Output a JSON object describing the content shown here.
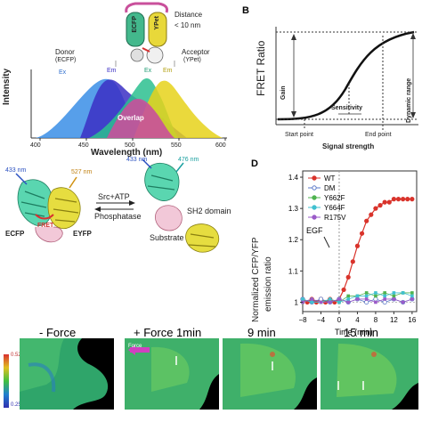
{
  "panelA": {
    "distance_label": "Distance",
    "distance_value": "< 10 nm",
    "ecfp_label": "ECFP",
    "ypet_label": "YPet",
    "donor_label": "Donor",
    "donor_sub": "(ECFP)",
    "acceptor_label": "Acceptor",
    "acceptor_sub": "(YPet)",
    "ylabel": "Intensity",
    "xlabel": "Wavelength (nm)",
    "ticks": [
      "400",
      "450",
      "500",
      "550",
      "600"
    ],
    "curve_labels": [
      "Ex",
      "Em",
      "Ex",
      "Em"
    ],
    "overlap_label": "Overlap",
    "colors": {
      "ecfp_ex": "#3a8ee6",
      "ecfp_em": "#3b2fc4",
      "ypet_ex": "#2bbf8f",
      "ypet_em": "#e6d21a",
      "overlap": "#c9509b"
    }
  },
  "panelB": {
    "letter": "B",
    "ylabel": "FRET Ratio",
    "xlabel": "Signal strength",
    "gain": "Gain",
    "dynamic_range": "Dynamic range",
    "sensitivity": "Sensitivity",
    "start_point": "Start point",
    "end_point": "End point"
  },
  "panelC": {
    "w433_left": "433 nm",
    "w527_left": "527 nm",
    "ecfp": "ECFP",
    "fret": "FRET",
    "eyfp": "EYFP",
    "reaction_top": "Src+ATP",
    "reaction_bottom": "Phosphatase",
    "w433_right": "433 nm",
    "w476_right": "476 nm",
    "sh2": "SH2 domain",
    "substrate": "Substrate"
  },
  "panelD": {
    "letter": "D",
    "ylabel_line1": "Normalized CFP/YFP",
    "ylabel_line2": "emission ratio",
    "xlabel": "Time (min)",
    "egf": "EGF",
    "yticks": [
      "1",
      "1.1",
      "1.2",
      "1.3",
      "1.4"
    ],
    "xticks": [
      "−8",
      "−4",
      "0",
      "4",
      "8",
      "12",
      "16"
    ],
    "legend": [
      "WT",
      "DM",
      "Y662F",
      "Y664F",
      "R175V"
    ]
  },
  "chart_data": {
    "type": "line",
    "xlabel": "Time (min)",
    "ylabel": "Normalized CFP/YFP emission ratio",
    "xlim": [
      -8,
      17
    ],
    "ylim": [
      0.97,
      1.42
    ],
    "annotations": [
      "EGF"
    ],
    "legend_position": "top-left",
    "series": [
      {
        "name": "WT",
        "color": "#d9332b",
        "x": [
          -8,
          -7,
          -6,
          -5,
          -4,
          -3,
          -2,
          -1,
          0,
          1,
          2,
          3,
          4,
          5,
          6,
          7,
          8,
          9,
          10,
          11,
          12,
          13,
          14,
          15,
          16
        ],
        "y": [
          1.01,
          1.0,
          1.01,
          1.0,
          1.01,
          1.0,
          1.01,
          1.0,
          1.01,
          1.04,
          1.08,
          1.13,
          1.18,
          1.22,
          1.26,
          1.28,
          1.3,
          1.31,
          1.32,
          1.32,
          1.33,
          1.33,
          1.33,
          1.33,
          1.33
        ]
      },
      {
        "name": "DM",
        "color": "#5a78c8",
        "x": [
          -8,
          -6,
          -4,
          -2,
          0,
          2,
          4,
          6,
          8,
          10,
          12,
          14,
          16
        ],
        "y": [
          1.01,
          1.0,
          1.01,
          1.0,
          1.01,
          1.0,
          1.01,
          1.0,
          1.01,
          1.0,
          1.01,
          1.0,
          1.01
        ]
      },
      {
        "name": "Y662F",
        "color": "#4fb34f",
        "x": [
          -8,
          -6,
          -4,
          -2,
          0,
          2,
          4,
          6,
          8,
          10,
          12,
          14,
          16
        ],
        "y": [
          1.0,
          1.01,
          1.0,
          1.01,
          1.0,
          1.02,
          1.02,
          1.03,
          1.02,
          1.03,
          1.02,
          1.03,
          1.03
        ]
      },
      {
        "name": "Y664F",
        "color": "#40c0d0",
        "x": [
          -8,
          -6,
          -4,
          -2,
          0,
          2,
          4,
          6,
          8,
          10,
          12,
          14,
          16
        ],
        "y": [
          1.01,
          1.0,
          1.0,
          1.01,
          1.0,
          1.01,
          1.02,
          1.02,
          1.03,
          1.02,
          1.03,
          1.03,
          1.02
        ]
      },
      {
        "name": "R175V",
        "color": "#9a5ac8",
        "x": [
          -8,
          -6,
          -4,
          -2,
          0,
          2,
          4,
          6,
          8,
          10,
          12,
          14,
          16
        ],
        "y": [
          1.0,
          1.01,
          1.0,
          1.0,
          1.01,
          1.0,
          1.01,
          1.01,
          1.0,
          1.01,
          1.01,
          1.0,
          1.01
        ]
      }
    ]
  },
  "panelE": {
    "titles": [
      "- Force",
      "+ Force 1min",
      "9 min",
      "15 min"
    ],
    "scale_top": "0.52",
    "scale_bottom": "0.25",
    "force_label": "Force"
  }
}
